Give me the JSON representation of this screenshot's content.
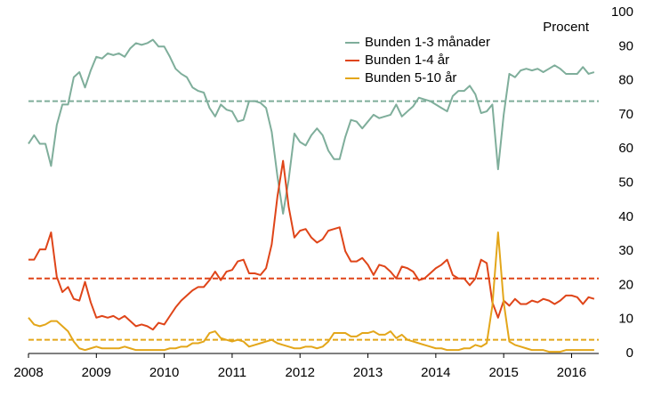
{
  "chart_data": {
    "type": "line",
    "y_axis_label": "Procent",
    "x": [
      2008,
      2008.083,
      2008.167,
      2008.25,
      2008.333,
      2008.417,
      2008.5,
      2008.583,
      2008.667,
      2008.75,
      2008.833,
      2008.917,
      2009,
      2009.083,
      2009.167,
      2009.25,
      2009.333,
      2009.417,
      2009.5,
      2009.583,
      2009.667,
      2009.75,
      2009.833,
      2009.917,
      2010,
      2010.083,
      2010.167,
      2010.25,
      2010.333,
      2010.417,
      2010.5,
      2010.583,
      2010.667,
      2010.75,
      2010.833,
      2010.917,
      2011,
      2011.083,
      2011.167,
      2011.25,
      2011.333,
      2011.417,
      2011.5,
      2011.583,
      2011.667,
      2011.75,
      2011.833,
      2011.917,
      2012,
      2012.083,
      2012.167,
      2012.25,
      2012.333,
      2012.417,
      2012.5,
      2012.583,
      2012.667,
      2012.75,
      2012.833,
      2012.917,
      2013,
      2013.083,
      2013.167,
      2013.25,
      2013.333,
      2013.417,
      2013.5,
      2013.583,
      2013.667,
      2013.75,
      2013.833,
      2013.917,
      2014,
      2014.083,
      2014.167,
      2014.25,
      2014.333,
      2014.417,
      2014.5,
      2014.583,
      2014.667,
      2014.75,
      2014.833,
      2014.917,
      2015,
      2015.083,
      2015.167,
      2015.25,
      2015.333,
      2015.417,
      2015.5,
      2015.583,
      2015.667,
      2015.75,
      2015.833,
      2015.917,
      2016,
      2016.083,
      2016.167,
      2016.25,
      2016.333
    ],
    "series": [
      {
        "name": "Bunden 1-3 månader",
        "color": "#7fae9b",
        "values": [
          61.5,
          64,
          61.5,
          61.5,
          55,
          67,
          73,
          73,
          81,
          82.5,
          78,
          83,
          87,
          86.5,
          88,
          87.5,
          88,
          87,
          89.5,
          91,
          90.5,
          91,
          92,
          90,
          90,
          87,
          83.5,
          82,
          81,
          78,
          77,
          76.5,
          72,
          69.5,
          73,
          71.5,
          71,
          68,
          68.5,
          74,
          74,
          73.5,
          72,
          65,
          52,
          41,
          51,
          64.5,
          62,
          61,
          64,
          66,
          64,
          59.5,
          57,
          57,
          63.5,
          68.5,
          68,
          66,
          68,
          70,
          69,
          69.5,
          70,
          73,
          69.5,
          71,
          72.5,
          75,
          74.5,
          74,
          73,
          72,
          71,
          75.5,
          77,
          77,
          78.5,
          76,
          70.5,
          71,
          73,
          54,
          70,
          82,
          81,
          83,
          83.5,
          83,
          83.5,
          82.5,
          83.5,
          84.5,
          83.5,
          82,
          82,
          82,
          84,
          82,
          82.5
        ]
      },
      {
        "name": "Bunden 1-4 år",
        "color": "#df4519",
        "values": [
          27.5,
          27.5,
          30.5,
          30.5,
          35.5,
          22.5,
          18,
          19.5,
          16,
          15.5,
          21,
          15,
          10.5,
          11,
          10.5,
          11,
          10,
          11,
          9.5,
          8,
          8.5,
          8,
          7,
          9,
          8.5,
          11,
          13.5,
          15.5,
          17,
          18.5,
          19.5,
          19.5,
          21.5,
          24,
          21.5,
          24,
          24.5,
          27,
          27.5,
          23.5,
          23.5,
          23,
          25,
          32,
          46,
          56.5,
          43,
          34,
          36,
          36.5,
          34,
          32.5,
          33.5,
          36,
          36.5,
          37,
          30,
          27,
          27,
          28,
          26,
          23,
          26,
          25.5,
          24,
          22,
          25.5,
          25,
          24,
          21.5,
          22,
          23.5,
          25,
          26,
          27.5,
          23,
          22,
          22,
          20,
          22,
          27.5,
          26.5,
          15,
          10.5,
          15.5,
          14,
          16,
          14.5,
          14.5,
          15.5,
          15,
          16,
          15.5,
          14.5,
          15.5,
          17,
          17,
          16.5,
          14.5,
          16.5,
          16
        ]
      },
      {
        "name": "Bunden 5-10 år",
        "color": "#e3a61a",
        "values": [
          10.5,
          8.5,
          8,
          8.5,
          9.5,
          9.5,
          8,
          6.5,
          3.5,
          1.5,
          1,
          1.5,
          2,
          1.5,
          1.5,
          1.5,
          1.5,
          2,
          1.5,
          1,
          1,
          1,
          1,
          1,
          1,
          1.5,
          1.5,
          2,
          2,
          3,
          3,
          3.5,
          6,
          6.5,
          4.5,
          4,
          3.5,
          4,
          3.5,
          2,
          2.5,
          3,
          3.5,
          4,
          3,
          2.5,
          2,
          1.5,
          1.5,
          2,
          2,
          1.5,
          2,
          3.5,
          6,
          6,
          6,
          5,
          5,
          6,
          6,
          6.5,
          5.5,
          5.5,
          6.5,
          4.5,
          5.5,
          4,
          3.5,
          3,
          2.5,
          2,
          1.5,
          1.5,
          1,
          1,
          1,
          1.5,
          1.5,
          2.5,
          2,
          3,
          14,
          35.5,
          15,
          3.5,
          2.5,
          2,
          1.5,
          1,
          1,
          1,
          0.5,
          0.5,
          0.5,
          1,
          1,
          1,
          1,
          1,
          1
        ]
      }
    ],
    "reference_lines": [
      {
        "value": 74,
        "color": "#7fae9b"
      },
      {
        "value": 22,
        "color": "#df4519"
      },
      {
        "value": 4,
        "color": "#e3a61a"
      }
    ],
    "xlim": [
      2008,
      2016.4
    ],
    "xticks": [
      2008,
      2009,
      2010,
      2011,
      2012,
      2013,
      2014,
      2015,
      2016
    ],
    "ylim": [
      0,
      100
    ],
    "yticks": [
      0,
      10,
      20,
      30,
      40,
      50,
      60,
      70,
      80,
      90,
      100
    ],
    "legend": "top-center",
    "grid": false
  }
}
